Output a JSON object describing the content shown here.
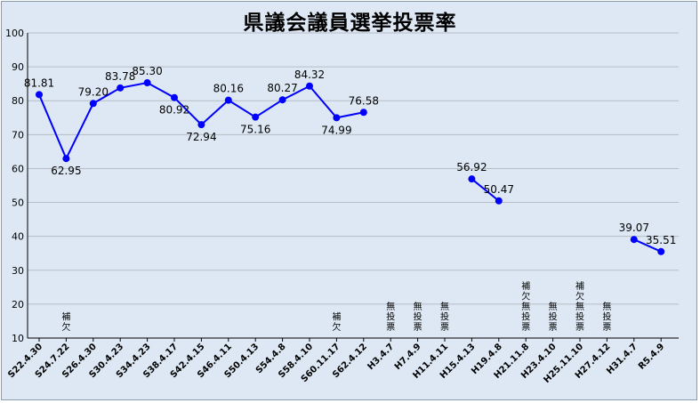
{
  "chart_data": {
    "type": "line",
    "title": "県議会議員選挙投票率",
    "xlabel": "",
    "ylabel": "",
    "ylim": [
      10,
      100
    ],
    "yticks": [
      10,
      20,
      30,
      40,
      50,
      60,
      70,
      80,
      90,
      100
    ],
    "grid": true,
    "legend": "none",
    "colors": {
      "line": "#0000ff",
      "marker": "#0000ff",
      "background": "#dde8f4",
      "grid": "#b5bdc7"
    },
    "categories": [
      "S22.4.30",
      "S24.7.22",
      "S26.4.30",
      "S30.4.23",
      "S34.4.23",
      "S38.4.17",
      "S42.4.15",
      "S46.4.11",
      "S50.4.13",
      "S54.4.8",
      "S58.4.10",
      "S60.11.17",
      "S62.4.12",
      "H3.4.7",
      "H7.4.9",
      "H11.4.11",
      "H15.4.13",
      "H19.4.8",
      "H21.11.8",
      "H23.4.10",
      "H25.11.10",
      "H27.4.12",
      "H31.4.7",
      "R5.4.9"
    ],
    "values": [
      81.81,
      62.95,
      79.2,
      83.78,
      85.3,
      80.92,
      72.94,
      80.16,
      75.16,
      80.27,
      84.32,
      74.99,
      76.58,
      null,
      null,
      null,
      56.92,
      50.47,
      null,
      null,
      null,
      null,
      39.07,
      35.51
    ],
    "data_labels": [
      "81.81",
      "62.95",
      "79.20",
      "83.78",
      "85.30",
      "80.92",
      "72.94",
      "80.16",
      "75.16",
      "80.27",
      "84.32",
      "74.99",
      "76.58",
      "",
      "",
      "",
      "56.92",
      "50.47",
      "",
      "",
      "",
      "",
      "39.07",
      "35.51"
    ],
    "annotations": [
      "",
      "補欠",
      "",
      "",
      "",
      "",
      "",
      "",
      "",
      "",
      "",
      "補欠",
      "",
      "無投票",
      "無投票",
      "無投票",
      "",
      "",
      "補欠無投票",
      "無投票",
      "補欠無投票",
      "無投票",
      "",
      ""
    ]
  }
}
